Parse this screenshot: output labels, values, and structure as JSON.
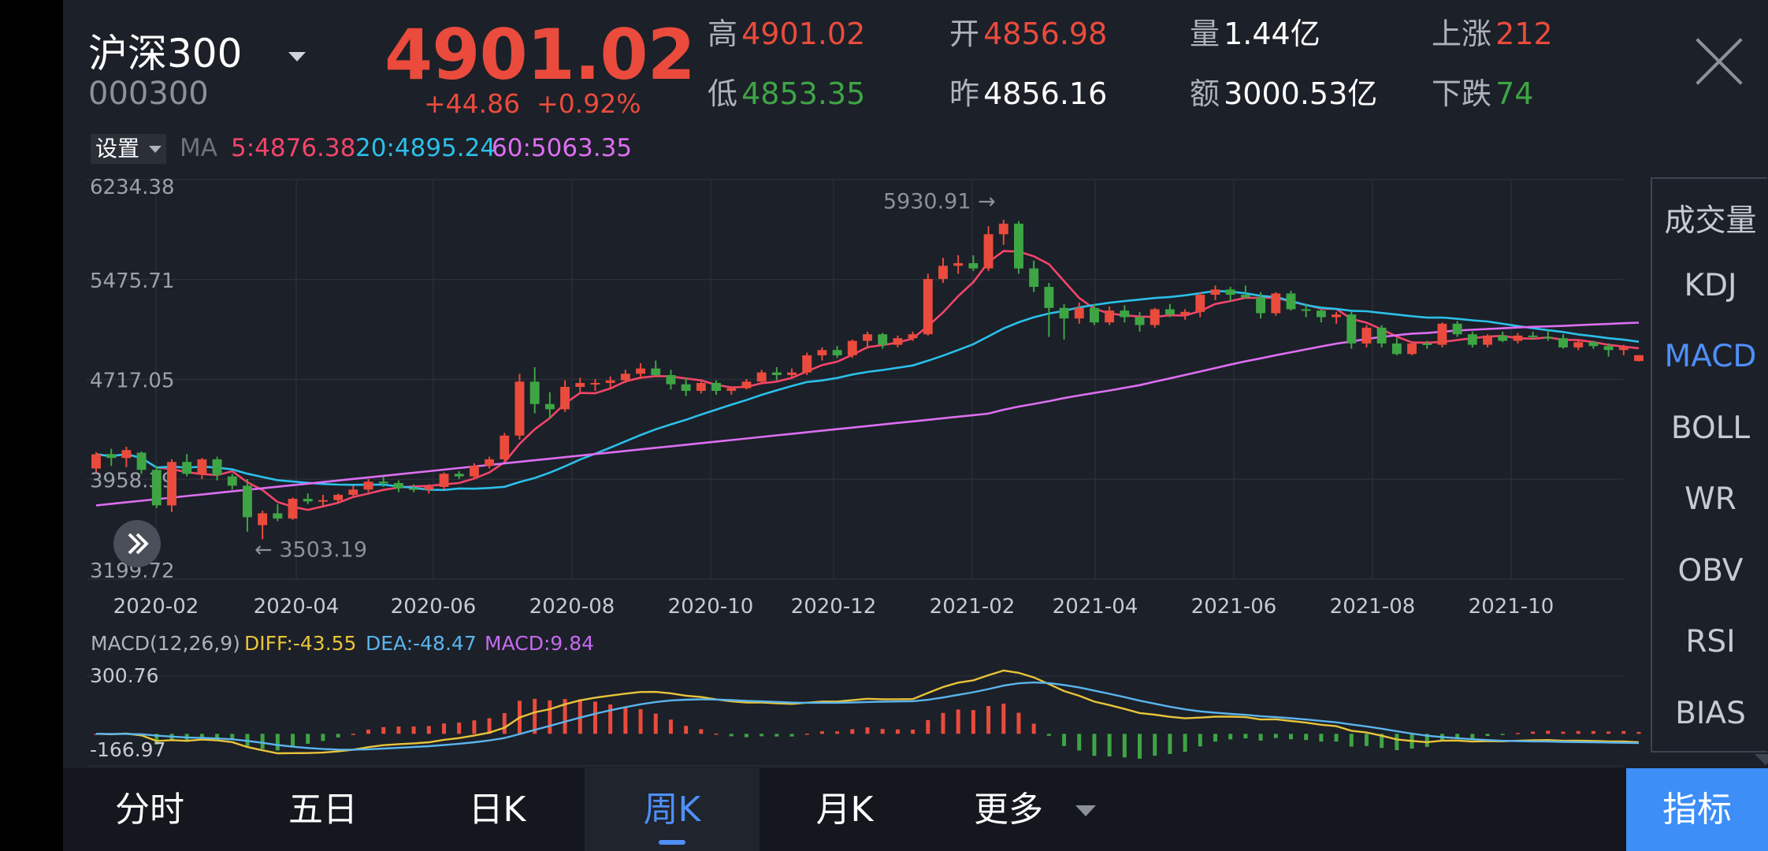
{
  "header": {
    "index_name": "沪深300",
    "index_code": "000300",
    "price": "4901.02",
    "change": "+44.86",
    "change_pct": "+0.92%"
  },
  "quote": [
    {
      "key": "高",
      "value": "4901.02",
      "color": "red"
    },
    {
      "key": "开",
      "value": "4856.98",
      "color": "red"
    },
    {
      "key": "量",
      "value": "1.44亿",
      "color": "white"
    },
    {
      "key": "上涨",
      "value": "212",
      "color": "red"
    },
    {
      "key": "低",
      "value": "4853.35",
      "color": "green"
    },
    {
      "key": "昨",
      "value": "4856.16",
      "color": "white"
    },
    {
      "key": "额",
      "value": "3000.53亿",
      "color": "white"
    },
    {
      "key": "下跌",
      "value": "74",
      "color": "green"
    }
  ],
  "ma_row": {
    "settings_label": "设置",
    "ma_label": "MA",
    "ma5": "5:4876.38",
    "ma20": "20:4895.24",
    "ma60": "60:5063.35"
  },
  "macd_row": {
    "label": "MACD(12,26,9)",
    "diff": "DIFF:-43.55",
    "dea": "DEA:-48.47",
    "macd": "MACD:9.84"
  },
  "indicators": {
    "items": [
      "成交量",
      "KDJ",
      "MACD",
      "BOLL",
      "WR",
      "OBV",
      "RSI",
      "BIAS"
    ],
    "active": "MACD"
  },
  "tabs": {
    "items": [
      "分时",
      "五日",
      "日K",
      "周K",
      "月K",
      "更多"
    ],
    "active": "周K",
    "indicator_button": "指标"
  },
  "colors": {
    "up": "#ea4b3c",
    "down": "#3ea545",
    "ma5": "#f2456a",
    "ma20": "#2ac0ea",
    "ma60": "#dd6ef2",
    "diff": "#e8c43a",
    "dea": "#5ab4ee",
    "macd_label": "#c56af0",
    "active_tab": "#4f8ff7"
  },
  "chart_data": [
    {
      "type": "candlestick",
      "title": "周K",
      "ytick_labels": [
        "6234.38",
        "5475.71",
        "4717.05",
        "3958.39",
        "3199.72"
      ],
      "ylim": [
        3199.72,
        6234.38
      ],
      "xtick_labels": [
        "2020-02",
        "2020-04",
        "2020-06",
        "2020-08",
        "2020-10",
        "2020-12",
        "2021-02",
        "2021-04",
        "2021-06",
        "2021-08",
        "2021-10"
      ],
      "annotations": {
        "high_label": "5930.91 →",
        "high_value": 5930.91,
        "low_label": "← 3503.19",
        "low_value": 3503.19
      },
      "ohlc": [
        [
          4040,
          4165,
          4010,
          4148
        ],
        [
          4150,
          4190,
          4060,
          4120
        ],
        [
          4120,
          4205,
          4050,
          4180
        ],
        [
          4160,
          4170,
          4000,
          4030
        ],
        [
          4030,
          4060,
          3740,
          3760
        ],
        [
          3760,
          4110,
          3710,
          4090
        ],
        [
          4090,
          4150,
          3980,
          4000
        ],
        [
          4000,
          4120,
          3960,
          4110
        ],
        [
          4110,
          4130,
          3950,
          3990
        ],
        [
          3980,
          4000,
          3880,
          3910
        ],
        [
          3910,
          3960,
          3560,
          3670
        ],
        [
          3610,
          3720,
          3503,
          3700
        ],
        [
          3700,
          3770,
          3640,
          3660
        ],
        [
          3660,
          3820,
          3650,
          3810
        ],
        [
          3810,
          3850,
          3770,
          3790
        ],
        [
          3790,
          3840,
          3760,
          3800
        ],
        [
          3800,
          3850,
          3780,
          3840
        ],
        [
          3840,
          3910,
          3820,
          3880
        ],
        [
          3880,
          3960,
          3860,
          3940
        ],
        [
          3940,
          3980,
          3900,
          3930
        ],
        [
          3930,
          3950,
          3860,
          3890
        ],
        [
          3890,
          3920,
          3860,
          3880
        ],
        [
          3880,
          3920,
          3850,
          3900
        ],
        [
          3900,
          4010,
          3880,
          4000
        ],
        [
          4000,
          4020,
          3960,
          3980
        ],
        [
          3980,
          4080,
          3960,
          4060
        ],
        [
          4060,
          4130,
          4040,
          4110
        ],
        [
          4110,
          4310,
          4100,
          4290
        ],
        [
          4290,
          4760,
          4260,
          4700
        ],
        [
          4700,
          4810,
          4460,
          4530
        ],
        [
          4530,
          4620,
          4420,
          4490
        ],
        [
          4490,
          4710,
          4470,
          4660
        ],
        [
          4660,
          4730,
          4620,
          4690
        ],
        [
          4690,
          4720,
          4630,
          4690
        ],
        [
          4690,
          4740,
          4640,
          4710
        ],
        [
          4710,
          4790,
          4690,
          4760
        ],
        [
          4760,
          4840,
          4720,
          4800
        ],
        [
          4800,
          4860,
          4740,
          4750
        ],
        [
          4750,
          4790,
          4640,
          4680
        ],
        [
          4680,
          4730,
          4590,
          4630
        ],
        [
          4630,
          4700,
          4610,
          4690
        ],
        [
          4690,
          4710,
          4600,
          4630
        ],
        [
          4630,
          4660,
          4600,
          4650
        ],
        [
          4650,
          4720,
          4640,
          4700
        ],
        [
          4700,
          4790,
          4690,
          4770
        ],
        [
          4770,
          4810,
          4710,
          4750
        ],
        [
          4750,
          4800,
          4730,
          4770
        ],
        [
          4770,
          4920,
          4750,
          4900
        ],
        [
          4900,
          4960,
          4860,
          4940
        ],
        [
          4940,
          4970,
          4880,
          4900
        ],
        [
          4900,
          5020,
          4880,
          5010
        ],
        [
          5010,
          5080,
          4950,
          5060
        ],
        [
          5060,
          5070,
          4950,
          4980
        ],
        [
          4980,
          5050,
          4960,
          5030
        ],
        [
          5030,
          5080,
          5010,
          5060
        ],
        [
          5060,
          5520,
          5050,
          5480
        ],
        [
          5480,
          5640,
          5450,
          5580
        ],
        [
          5580,
          5660,
          5520,
          5600
        ],
        [
          5600,
          5660,
          5540,
          5560
        ],
        [
          5560,
          5880,
          5540,
          5820
        ],
        [
          5820,
          5930,
          5740,
          5900
        ],
        [
          5900,
          5920,
          5520,
          5560
        ],
        [
          5560,
          5620,
          5380,
          5420
        ],
        [
          5420,
          5450,
          5040,
          5260
        ],
        [
          5260,
          5290,
          5020,
          5180
        ],
        [
          5180,
          5300,
          5140,
          5260
        ],
        [
          5260,
          5290,
          5130,
          5150
        ],
        [
          5150,
          5270,
          5130,
          5240
        ],
        [
          5240,
          5280,
          5150,
          5190
        ],
        [
          5190,
          5230,
          5080,
          5130
        ],
        [
          5130,
          5260,
          5110,
          5250
        ],
        [
          5250,
          5290,
          5190,
          5210
        ],
        [
          5210,
          5250,
          5170,
          5230
        ],
        [
          5230,
          5380,
          5190,
          5360
        ],
        [
          5360,
          5430,
          5320,
          5400
        ],
        [
          5400,
          5420,
          5310,
          5360
        ],
        [
          5360,
          5430,
          5330,
          5340
        ],
        [
          5340,
          5380,
          5180,
          5220
        ],
        [
          5220,
          5380,
          5200,
          5370
        ],
        [
          5370,
          5390,
          5240,
          5250
        ],
        [
          5250,
          5290,
          5190,
          5240
        ],
        [
          5240,
          5260,
          5150,
          5190
        ],
        [
          5190,
          5230,
          5140,
          5210
        ],
        [
          5210,
          5230,
          4950,
          4990
        ],
        [
          4990,
          5130,
          4960,
          5110
        ],
        [
          5110,
          5130,
          4960,
          4990
        ],
        [
          4990,
          5030,
          4900,
          4910
        ],
        [
          4910,
          5000,
          4900,
          4990
        ],
        [
          4990,
          5010,
          4950,
          4980
        ],
        [
          4980,
          5150,
          4960,
          5140
        ],
        [
          5140,
          5160,
          5040,
          5060
        ],
        [
          5060,
          5080,
          4960,
          4980
        ],
        [
          4980,
          5060,
          4960,
          5050
        ],
        [
          5050,
          5080,
          5000,
          5010
        ],
        [
          5010,
          5070,
          4990,
          5050
        ],
        [
          5050,
          5080,
          5020,
          5040
        ],
        [
          5040,
          5090,
          5010,
          5030
        ],
        [
          5030,
          5060,
          4950,
          4960
        ],
        [
          4960,
          5010,
          4940,
          5000
        ],
        [
          5000,
          5010,
          4950,
          4970
        ],
        [
          4970,
          4990,
          4890,
          4940
        ],
        [
          4940,
          4980,
          4900,
          4960
        ],
        [
          4856.98,
          4901.02,
          4853.35,
          4901.02
        ]
      ]
    },
    {
      "type": "macd",
      "title": "MACD(12,26,9)",
      "ytick_labels": [
        "300.76",
        "-166.97"
      ],
      "ylim": [
        -166.97,
        300.76
      ],
      "diff_last": -43.55,
      "dea_last": -48.47,
      "macd_last": 9.84
    }
  ]
}
